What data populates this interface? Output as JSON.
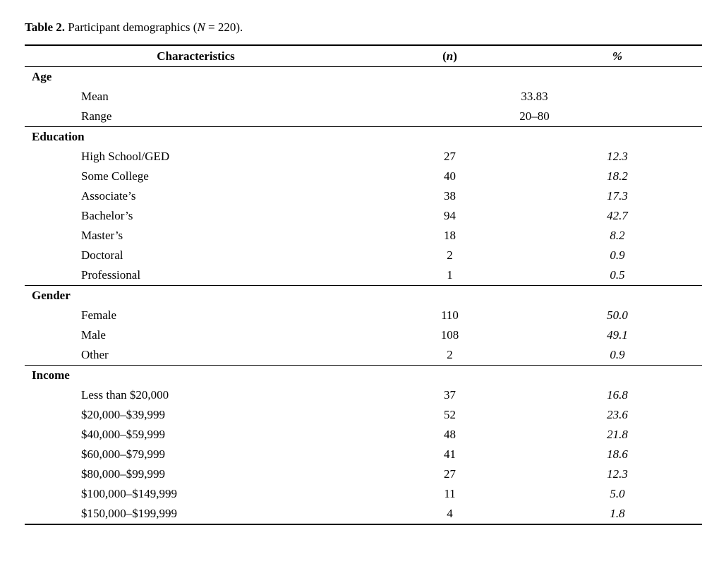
{
  "colors": {
    "background": "#ffffff",
    "ink": "#000000"
  },
  "caption": {
    "label": "Table 2.",
    "pre": "Participant demographics (",
    "n_symbol": "N",
    "post": " = 220)."
  },
  "headers": {
    "characteristics": "Characteristics",
    "n_prefix": "(",
    "n": "n",
    "n_suffix": ")",
    "percent": "%"
  },
  "sections": [
    {
      "name": "Age",
      "rows": [
        {
          "label": "Mean",
          "merged": "33.83"
        },
        {
          "label": "Range",
          "merged": "20–80"
        }
      ]
    },
    {
      "name": "Education",
      "rows": [
        {
          "label": "High School/GED",
          "n": "27",
          "pct": "12.3"
        },
        {
          "label": "Some College",
          "n": "40",
          "pct": "18.2"
        },
        {
          "label": "Associate’s",
          "n": "38",
          "pct": "17.3"
        },
        {
          "label": "Bachelor’s",
          "n": "94",
          "pct": "42.7"
        },
        {
          "label": "Master’s",
          "n": "18",
          "pct": "8.2"
        },
        {
          "label": "Doctoral",
          "n": "2",
          "pct": "0.9"
        },
        {
          "label": "Professional",
          "n": "1",
          "pct": "0.5"
        }
      ]
    },
    {
      "name": "Gender",
      "rows": [
        {
          "label": "Female",
          "n": "110",
          "pct": "50.0"
        },
        {
          "label": "Male",
          "n": "108",
          "pct": "49.1"
        },
        {
          "label": "Other",
          "n": "2",
          "pct": "0.9"
        }
      ]
    },
    {
      "name": "Income",
      "rows": [
        {
          "label": "Less than $20,000",
          "n": "37",
          "pct": "16.8"
        },
        {
          "label": "$20,000–$39,999",
          "n": "52",
          "pct": "23.6"
        },
        {
          "label": "$40,000–$59,999",
          "n": "48",
          "pct": "21.8"
        },
        {
          "label": "$60,000–$79,999",
          "n": "41",
          "pct": "18.6"
        },
        {
          "label": "$80,000–$99,999",
          "n": "27",
          "pct": "12.3"
        },
        {
          "label": "$100,000–$149,999",
          "n": "11",
          "pct": "5.0"
        },
        {
          "label": "$150,000–$199,999",
          "n": "4",
          "pct": "1.8"
        }
      ]
    }
  ]
}
